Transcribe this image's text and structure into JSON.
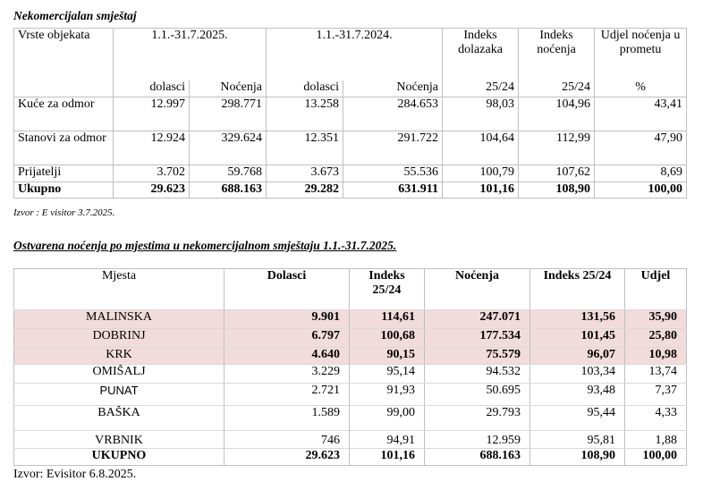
{
  "table1": {
    "title": "Nekomercijalan smještaj",
    "header1": [
      "Vrste objekata",
      "1.1.-31.7.2025.",
      "1.1.-31.7.2024.",
      "Indeks dolazaka",
      "Indeks noćenja",
      "Udjel noćenja u prometu"
    ],
    "header2": [
      "dolasci",
      "Noćenja",
      "dolasci",
      "Noćenja",
      "25/24",
      "25/24",
      "%"
    ],
    "rows": [
      [
        "Kuće za odmor",
        "12.997",
        "298.771",
        "13.258",
        "284.653",
        "98,03",
        "104,96",
        "43,41"
      ],
      [
        "Stanovi za odmor",
        "12.924",
        "329.624",
        "12.351",
        "291.722",
        "104,64",
        "112,99",
        "47,90"
      ],
      [
        "Prijatelji",
        "3.702",
        "59.768",
        "3.673",
        "55.536",
        "100,79",
        "107,62",
        "8,69"
      ]
    ],
    "total": [
      "Ukupno",
      "29.623",
      "688.163",
      "29.282",
      "631.911",
      "101,16",
      "108,90",
      "100,00"
    ],
    "source": "Izvor : E visitor 3.7.2025."
  },
  "table2": {
    "title": "Ostvarena noćenja po mjestima u nekomercijalnom  smještaju  1.1.-31.7.2025.",
    "headers": [
      "Mjesta",
      "Dolasci",
      "Indeks 25/24",
      "Noćenja",
      "Indeks 25/24",
      "Udjel"
    ],
    "rows": [
      [
        "MALINSKA",
        "9.901",
        "114,61",
        "247.071",
        "131,56",
        "35,90"
      ],
      [
        "DOBRINJ",
        "6.797",
        "100,68",
        "177.534",
        "101,45",
        "25,80"
      ],
      [
        "KRK",
        "4.640",
        "90,15",
        "75.579",
        "96,07",
        "10,98"
      ],
      [
        "OMIŠALJ",
        "3.229",
        "95,14",
        "94.532",
        "103,34",
        "13,74"
      ],
      [
        "PUNAT",
        "2.721",
        "91,93",
        "50.695",
        "93,48",
        "7,37"
      ],
      [
        "BAŠKA",
        "1.589",
        "99,00",
        "29.793",
        "95,44",
        "4,33"
      ],
      [
        "VRBNIK",
        "746",
        "94,91",
        "12.959",
        "95,81",
        "1,88"
      ]
    ],
    "total": [
      "UKUPNO",
      "29.623",
      "101,16",
      "688.163",
      "108,90",
      "100,00"
    ],
    "highlight_color": "#f2dcdb",
    "source": "Izvor: Evisitor  6.8.2025."
  }
}
